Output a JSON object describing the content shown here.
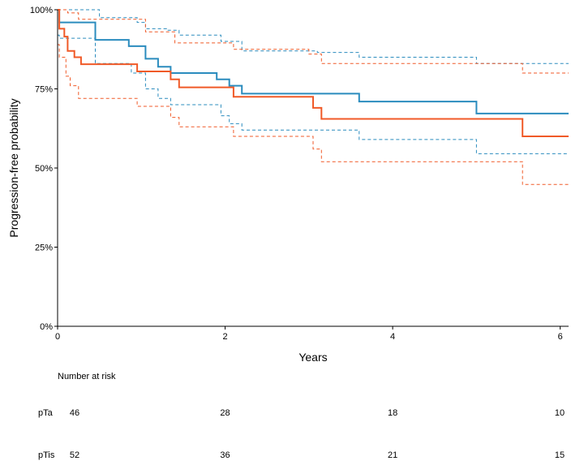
{
  "chart_data": {
    "type": "line",
    "xlabel": "Years",
    "ylabel": "Progression-free probability",
    "xlim": [
      0,
      6.1
    ],
    "ylim": [
      0,
      1
    ],
    "x_ticks": [
      0,
      2,
      4,
      6
    ],
    "x_tick_labels": [
      "0",
      "2",
      "4",
      "6"
    ],
    "y_ticks": [
      0,
      0.25,
      0.5,
      0.75,
      1.0
    ],
    "y_tick_labels": [
      "0%",
      "25%",
      "50%",
      "75%",
      "100%"
    ],
    "grid": false,
    "legend": "none",
    "series": [
      {
        "color": "#2b8cbe",
        "step": true,
        "x": [
          0,
          0.02,
          0.45,
          0.85,
          1.05,
          1.2,
          1.35,
          1.9,
          2.05,
          2.2,
          3.6,
          5.0,
          6.1
        ],
        "y": [
          1.0,
          0.96,
          0.905,
          0.885,
          0.845,
          0.82,
          0.8,
          0.78,
          0.76,
          0.735,
          0.71,
          0.672,
          0.672
        ],
        "lower": {
          "x": [
            0,
            0.02,
            0.45,
            0.88,
            1.05,
            1.2,
            1.35,
            1.95,
            2.05,
            2.2,
            3.6,
            5.0,
            6.1
          ],
          "y": [
            0.92,
            0.91,
            0.83,
            0.8,
            0.75,
            0.72,
            0.7,
            0.665,
            0.64,
            0.62,
            0.59,
            0.545,
            0.545
          ]
        },
        "upper": {
          "x": [
            0,
            0.02,
            0.5,
            0.95,
            1.05,
            1.3,
            1.45,
            1.95,
            2.2,
            3.1,
            3.6,
            5.0,
            6.1
          ],
          "y": [
            1.0,
            1.0,
            0.975,
            0.96,
            0.94,
            0.935,
            0.92,
            0.9,
            0.87,
            0.865,
            0.85,
            0.83,
            0.83
          ]
        }
      },
      {
        "color": "#f05a28",
        "step": true,
        "x": [
          0,
          0.02,
          0.08,
          0.12,
          0.2,
          0.28,
          0.95,
          1.35,
          1.45,
          2.1,
          3.05,
          3.15,
          5.55,
          6.1
        ],
        "y": [
          1.0,
          0.94,
          0.915,
          0.87,
          0.85,
          0.828,
          0.805,
          0.78,
          0.755,
          0.725,
          0.69,
          0.655,
          0.6,
          0.6
        ],
        "lower": {
          "x": [
            0,
            0.02,
            0.1,
            0.15,
            0.25,
            0.95,
            1.35,
            1.45,
            2.1,
            3.05,
            3.15,
            5.55,
            6.1
          ],
          "y": [
            0.89,
            0.85,
            0.79,
            0.76,
            0.72,
            0.695,
            0.66,
            0.63,
            0.6,
            0.56,
            0.52,
            0.448,
            0.448
          ]
        },
        "upper": {
          "x": [
            0,
            0.02,
            0.12,
            0.25,
            1.05,
            1.4,
            2.1,
            3.0,
            3.15,
            5.55,
            6.1
          ],
          "y": [
            1.0,
            1.0,
            0.99,
            0.97,
            0.93,
            0.895,
            0.875,
            0.86,
            0.83,
            0.8,
            0.8
          ]
        }
      }
    ],
    "risk_table": {
      "title": "Number at risk",
      "columns_x": [
        0,
        2,
        4,
        6
      ],
      "rows": [
        {
          "label": "pTa",
          "values": [
            "46",
            "28",
            "18",
            "10"
          ]
        },
        {
          "label": "pTis",
          "values": [
            "52",
            "36",
            "21",
            "15"
          ]
        }
      ]
    }
  }
}
